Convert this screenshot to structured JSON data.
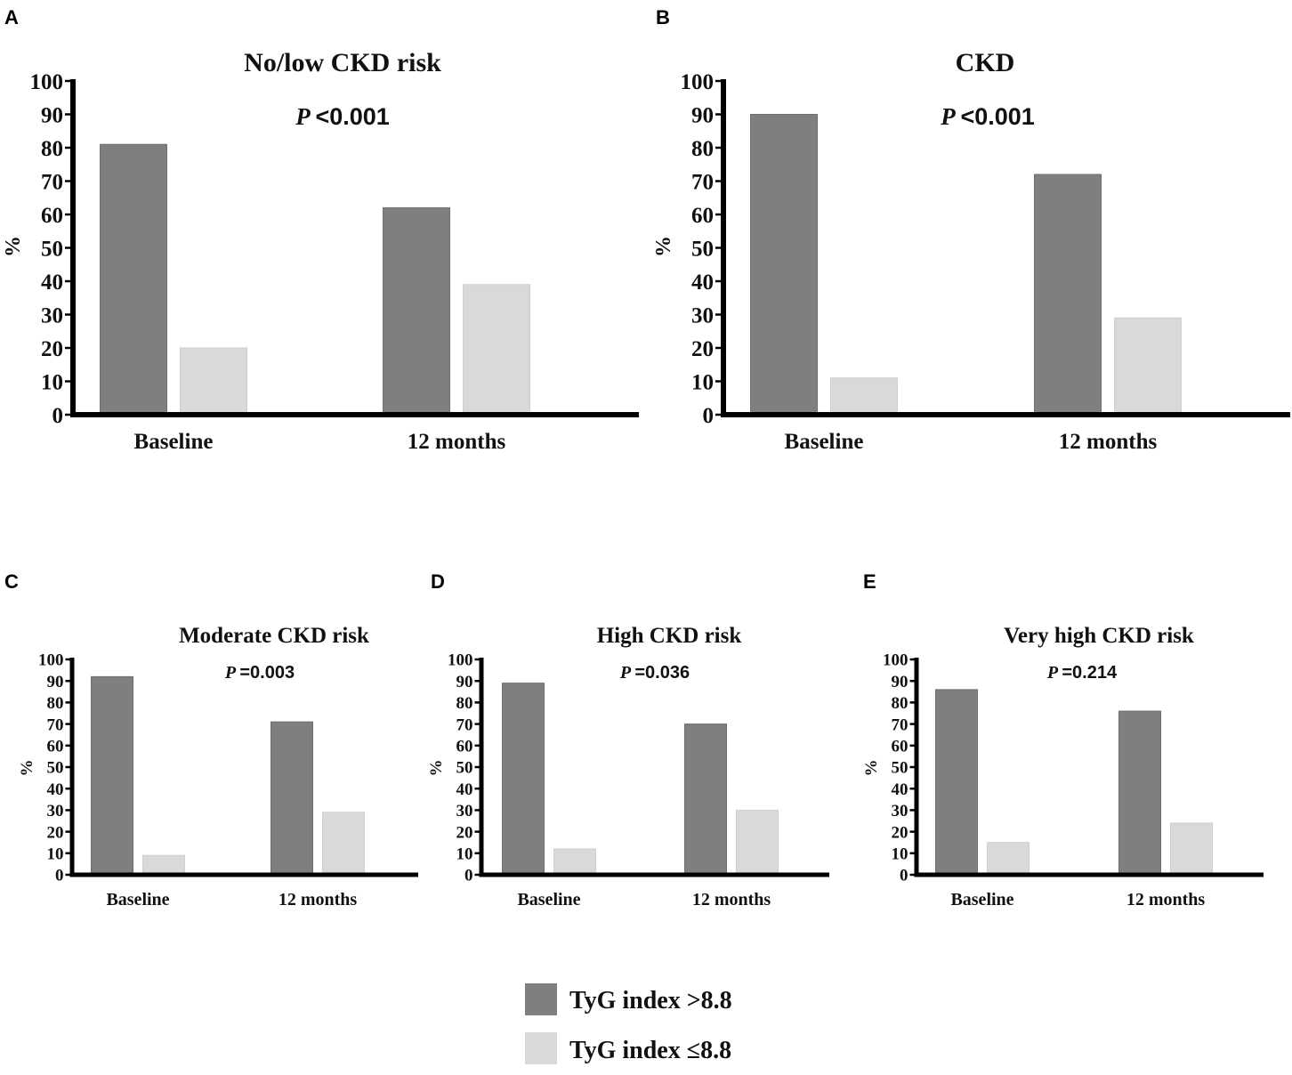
{
  "colors": {
    "high": "#7f7f7f",
    "low": "#d9d9d9",
    "axis": "#000000"
  },
  "legend": [
    {
      "label": "TyG index >8.8",
      "series": "high"
    },
    {
      "label": "TyG index ≤8.8",
      "series": "low"
    }
  ],
  "chart_data": [
    {
      "panel": "A",
      "type": "bar",
      "title": "No/low CKD risk",
      "p_symbol": "P",
      "p_value": "<0.001",
      "ylabel": "%",
      "ylim": [
        0,
        100
      ],
      "yticks": [
        0,
        10,
        20,
        30,
        40,
        50,
        60,
        70,
        80,
        90,
        100
      ],
      "categories": [
        "Baseline",
        "12 months"
      ],
      "series": [
        {
          "name": "TyG index >8.8",
          "key": "high",
          "values": [
            81,
            62
          ]
        },
        {
          "name": "TyG index ≤8.8",
          "key": "low",
          "values": [
            20,
            39
          ]
        }
      ]
    },
    {
      "panel": "B",
      "type": "bar",
      "title": "CKD",
      "p_symbol": "P",
      "p_value": "<0.001",
      "ylabel": "%",
      "ylim": [
        0,
        100
      ],
      "yticks": [
        0,
        10,
        20,
        30,
        40,
        50,
        60,
        70,
        80,
        90,
        100
      ],
      "categories": [
        "Baseline",
        "12 months"
      ],
      "series": [
        {
          "name": "TyG index >8.8",
          "key": "high",
          "values": [
            90,
            72
          ]
        },
        {
          "name": "TyG index ≤8.8",
          "key": "low",
          "values": [
            11,
            29
          ]
        }
      ]
    },
    {
      "panel": "C",
      "type": "bar",
      "title": "Moderate CKD risk",
      "p_symbol": "P",
      "p_value": "=0.003",
      "ylabel": "%",
      "ylim": [
        0,
        100
      ],
      "yticks": [
        0,
        10,
        20,
        30,
        40,
        50,
        60,
        70,
        80,
        90,
        100
      ],
      "categories": [
        "Baseline",
        "12 months"
      ],
      "series": [
        {
          "name": "TyG index >8.8",
          "key": "high",
          "values": [
            92,
            71
          ]
        },
        {
          "name": "TyG index ≤8.8",
          "key": "low",
          "values": [
            9,
            29
          ]
        }
      ]
    },
    {
      "panel": "D",
      "type": "bar",
      "title": "High CKD risk",
      "p_symbol": "P",
      "p_value": "=0.036",
      "ylabel": "%",
      "ylim": [
        0,
        100
      ],
      "yticks": [
        0,
        10,
        20,
        30,
        40,
        50,
        60,
        70,
        80,
        90,
        100
      ],
      "categories": [
        "Baseline",
        "12 months"
      ],
      "series": [
        {
          "name": "TyG index >8.8",
          "key": "high",
          "values": [
            89,
            70
          ]
        },
        {
          "name": "TyG index ≤8.8",
          "key": "low",
          "values": [
            12,
            30
          ]
        }
      ]
    },
    {
      "panel": "E",
      "type": "bar",
      "title": "Very high CKD risk",
      "p_symbol": "P",
      "p_value": "=0.214",
      "ylabel": "%",
      "ylim": [
        0,
        100
      ],
      "yticks": [
        0,
        10,
        20,
        30,
        40,
        50,
        60,
        70,
        80,
        90,
        100
      ],
      "categories": [
        "Baseline",
        "12 months"
      ],
      "series": [
        {
          "name": "TyG index >8.8",
          "key": "high",
          "values": [
            86,
            76
          ]
        },
        {
          "name": "TyG index ≤8.8",
          "key": "low",
          "values": [
            15,
            24
          ]
        }
      ]
    }
  ]
}
